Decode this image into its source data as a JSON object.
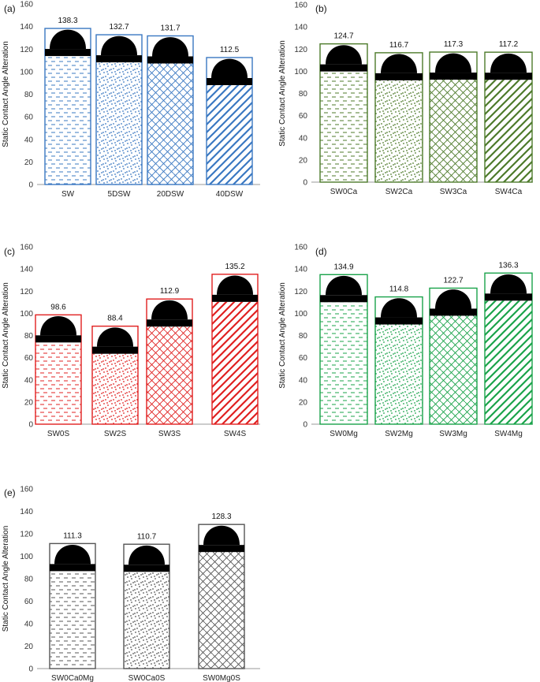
{
  "figure": {
    "description_panels": [
      "a",
      "b",
      "c",
      "d",
      "e"
    ]
  },
  "chart_data": [
    {
      "type": "bar",
      "panel_label": "(a)",
      "ylabel": "Static Contact Angle Alteration",
      "ylim": [
        0,
        160
      ],
      "yticks": [
        0,
        20,
        40,
        60,
        80,
        100,
        120,
        140,
        160
      ],
      "categories": [
        "SW",
        "5DSW",
        "20DSW",
        "40DSW"
      ],
      "values": [
        138.3,
        132.7,
        131.7,
        112.5
      ],
      "value_labels": [
        "138.3",
        "132.7",
        "131.7",
        "112.5"
      ],
      "colors": [
        "#3a78c2",
        "#3a78c2",
        "#3a78c2",
        "#3a78c2"
      ],
      "patterns": [
        "dash",
        "dot",
        "brick",
        "diag"
      ]
    },
    {
      "type": "bar",
      "panel_label": "(b)",
      "ylabel": "Static Contact Angle Alteration",
      "ylim": [
        0,
        160
      ],
      "yticks": [
        0,
        20,
        40,
        60,
        80,
        100,
        120,
        140,
        160
      ],
      "categories": [
        "SW0Ca",
        "SW2Ca",
        "SW3Ca",
        "SW4Ca"
      ],
      "values": [
        124.7,
        116.7,
        117.3,
        117.2
      ],
      "value_labels": [
        "124.7",
        "116.7",
        "117.3",
        "117.2"
      ],
      "colors": [
        "#4d7a2a",
        "#4d7a2a",
        "#4d7a2a",
        "#4d7a2a"
      ],
      "patterns": [
        "dash",
        "dot",
        "brick",
        "diag"
      ]
    },
    {
      "type": "bar",
      "panel_label": "(c)",
      "ylabel": "Static Contact Angle Alteration",
      "ylim": [
        0,
        160
      ],
      "yticks": [
        0,
        20,
        40,
        60,
        80,
        100,
        120,
        140,
        160
      ],
      "categories": [
        "SW0S",
        "SW2S",
        "SW3S",
        "SW4S"
      ],
      "values": [
        98.6,
        88.4,
        112.9,
        135.2
      ],
      "value_labels": [
        "98.6",
        "88.4",
        "112.9",
        "135.2"
      ],
      "colors": [
        "#e02020",
        "#e02020",
        "#e02020",
        "#e02020"
      ],
      "patterns": [
        "dash",
        "dot",
        "brick",
        "diag"
      ]
    },
    {
      "type": "bar",
      "panel_label": "(d)",
      "ylabel": "Static Contact Angle Alteration",
      "ylim": [
        0,
        160
      ],
      "yticks": [
        0,
        20,
        40,
        60,
        80,
        100,
        120,
        140,
        160
      ],
      "categories": [
        "SW0Mg",
        "SW2Mg",
        "SW3Mg",
        "SW4Mg"
      ],
      "values": [
        134.9,
        114.8,
        122.7,
        136.3
      ],
      "value_labels": [
        "134.9",
        "114.8",
        "122.7",
        "136.3"
      ],
      "colors": [
        "#1aa34a",
        "#1aa34a",
        "#1aa34a",
        "#1aa34a"
      ],
      "patterns": [
        "dash",
        "dot",
        "brick",
        "diag"
      ]
    },
    {
      "type": "bar",
      "panel_label": "(e)",
      "ylabel": "Static Contact Angle Alteration",
      "ylim": [
        0,
        160
      ],
      "yticks": [
        0,
        20,
        40,
        60,
        80,
        100,
        120,
        140,
        160
      ],
      "categories": [
        "SW0Ca0Mg",
        "SW0Ca0S",
        "SW0Mg0S"
      ],
      "values": [
        111.3,
        110.7,
        128.3
      ],
      "value_labels": [
        "111.3",
        "110.7",
        "128.3"
      ],
      "colors": [
        "#555555",
        "#555555",
        "#555555"
      ],
      "patterns": [
        "dash",
        "dot",
        "brick"
      ]
    }
  ]
}
